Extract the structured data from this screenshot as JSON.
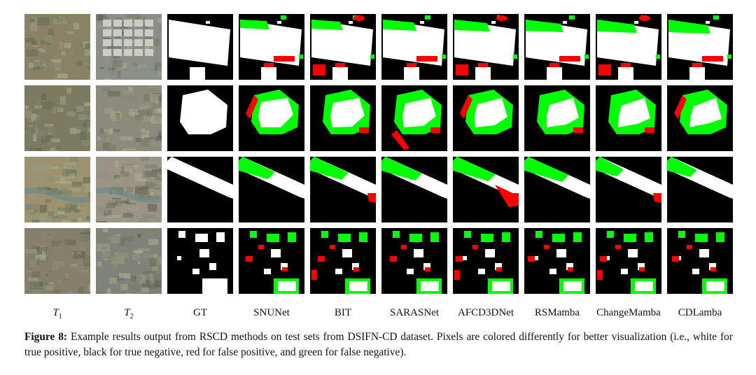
{
  "figure": {
    "columns": [
      {
        "key": "t1",
        "label": "T",
        "sub": "1",
        "italic": true
      },
      {
        "key": "t2",
        "label": "T",
        "sub": "2",
        "italic": true
      },
      {
        "key": "gt",
        "label": "GT"
      },
      {
        "key": "snunet",
        "label": "SNUNet"
      },
      {
        "key": "bit",
        "label": "BIT"
      },
      {
        "key": "sarasnet",
        "label": "SARASNet"
      },
      {
        "key": "afcd3dnet",
        "label": "AFCD3DNet"
      },
      {
        "key": "rsmamba",
        "label": "RSMamba"
      },
      {
        "key": "changemamba",
        "label": "ChangeMamba"
      },
      {
        "key": "cdlamba",
        "label": "CDLamba"
      }
    ],
    "rows": 4,
    "colors": {
      "true_positive": "#ffffff",
      "true_negative": "#000000",
      "false_positive": "#ff0000",
      "false_negative": "#00ff00"
    }
  },
  "caption": {
    "label": "Figure 8:",
    "text": " Example results output from RSCD methods on test sets from DSIFN-CD dataset. Pixels are colored differently for better visualization (i.e., white for true positive, black for true negative, red for false positive, and green for false negative)."
  }
}
